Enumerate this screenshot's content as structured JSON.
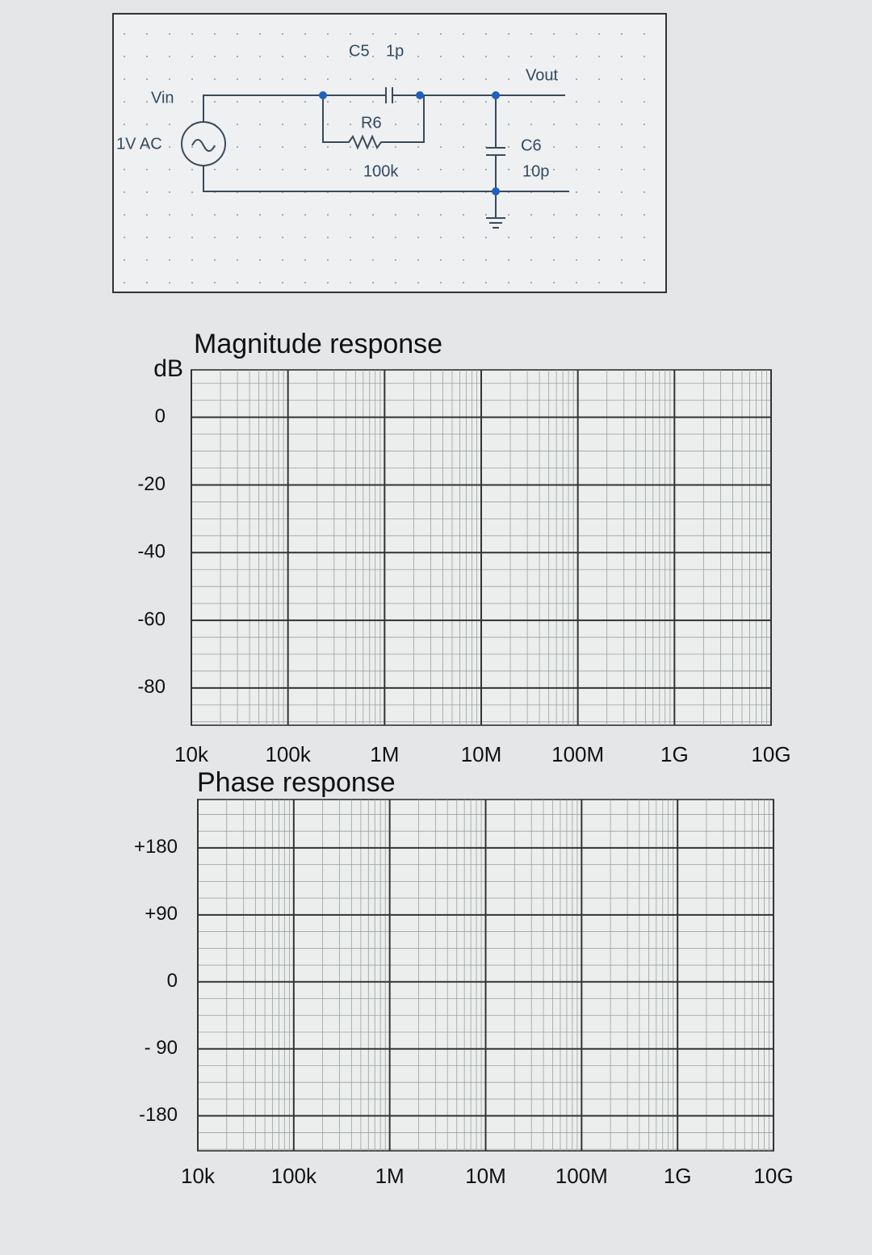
{
  "circuit": {
    "c5_name": "C5",
    "c5_value": "1p",
    "vin": "Vin",
    "source": "1V AC",
    "r6_name": "R6",
    "r6_value": "100k",
    "vout": "Vout",
    "c6_name": "C6",
    "c6_value": "10p"
  },
  "chart_data": [
    {
      "type": "line",
      "title": "Magnitude response",
      "ylabel": "dB",
      "log_x": true,
      "grid": true,
      "xlim": [
        10000,
        10000000000
      ],
      "xticks": [
        {
          "value": 10000,
          "label": "10k"
        },
        {
          "value": 100000,
          "label": "100k"
        },
        {
          "value": 1000000,
          "label": "1M"
        },
        {
          "value": 10000000,
          "label": "10M"
        },
        {
          "value": 100000000,
          "label": "100M"
        },
        {
          "value": 1000000000,
          "label": "1G"
        },
        {
          "value": 10000000000,
          "label": "10G"
        }
      ],
      "ylim": [
        -91,
        14
      ],
      "yticks": [
        0,
        -20,
        -40,
        -60,
        -80
      ]
    },
    {
      "type": "line",
      "title": "Phase response",
      "log_x": true,
      "grid": true,
      "xlim": [
        10000,
        10000000000
      ],
      "xticks": [
        {
          "value": 10000,
          "label": "10k"
        },
        {
          "value": 100000,
          "label": "100k"
        },
        {
          "value": 1000000,
          "label": "1M"
        },
        {
          "value": 10000000,
          "label": "10M"
        },
        {
          "value": 100000000,
          "label": "100M"
        },
        {
          "value": 1000000000,
          "label": "1G"
        },
        {
          "value": 10000000000,
          "label": "10G"
        }
      ],
      "ylim": [
        -227,
        245
      ],
      "yticks": [
        {
          "value": 180,
          "label": "+180"
        },
        {
          "value": 90,
          "label": "+90"
        },
        0,
        {
          "value": -90,
          "label": "- 90"
        },
        -180
      ]
    }
  ]
}
